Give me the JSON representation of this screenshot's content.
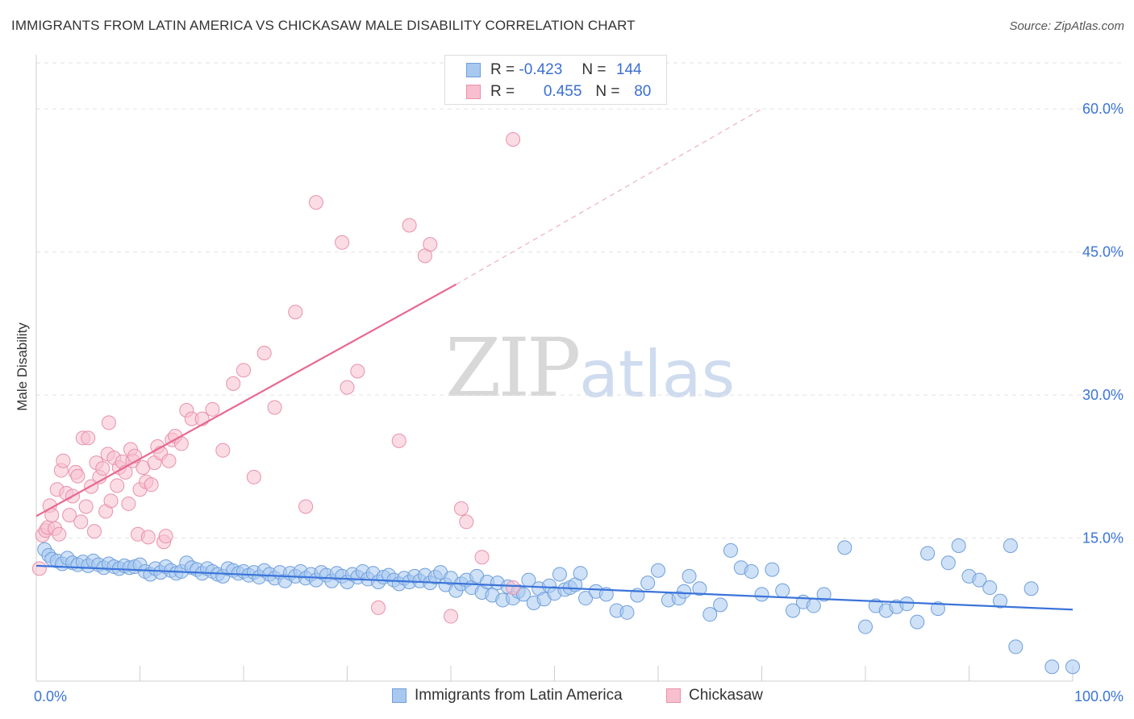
{
  "title": "IMMIGRANTS FROM LATIN AMERICA VS CHICKASAW MALE DISABILITY CORRELATION CHART",
  "source": "Source: ZipAtlas.com",
  "watermark": {
    "zip": "ZIP",
    "atlas": "atlas"
  },
  "legend_top": [
    {
      "r_label": "R =",
      "r_value": "-0.423",
      "n_label": "N =",
      "n_value": "144",
      "fill": "#a8c8f0",
      "stroke": "#6f9fdc"
    },
    {
      "r_label": "R =",
      "r_value": "0.455",
      "n_label": "N =",
      "n_value": "80",
      "fill": "#f8bfcf",
      "stroke": "#e891aa"
    }
  ],
  "legend_bottom": [
    {
      "label": "Immigrants from Latin America",
      "fill": "#a8c8f0",
      "stroke": "#6f9fdc"
    },
    {
      "label": "Chickasaw",
      "fill": "#f8bfcf",
      "stroke": "#e891aa"
    }
  ],
  "chart_data": {
    "type": "scatter",
    "title": "IMMIGRANTS FROM LATIN AMERICA VS CHICKASAW MALE DISABILITY CORRELATION CHART",
    "xlabel": "",
    "ylabel": "Male Disability",
    "xlim": [
      0,
      100
    ],
    "ylim": [
      0,
      65
    ],
    "x_tick_labels": [
      "0.0%",
      "100.0%"
    ],
    "y_ticks": [
      15,
      30,
      45,
      60
    ],
    "y_tick_labels": [
      "15.0%",
      "30.0%",
      "45.0%",
      "60.0%"
    ],
    "grid": "horizontal dashed",
    "legend_position": "top-center",
    "colors": {
      "blue": "#3b74d9",
      "pink": "#e8688f",
      "blue_fill": "#a8c8f0",
      "pink_fill": "#f8bfcf"
    },
    "series": [
      {
        "name": "Immigrants from Latin America",
        "color": "#3b74d9",
        "trend": {
          "x": [
            0,
            100
          ],
          "y": [
            12.1,
            7.5
          ]
        },
        "points": [
          [
            0.8,
            13.8
          ],
          [
            1.2,
            13.2
          ],
          [
            1.5,
            12.8
          ],
          [
            2,
            12.6
          ],
          [
            2.5,
            12.3
          ],
          [
            3,
            12.9
          ],
          [
            3.5,
            12.4
          ],
          [
            4,
            12.2
          ],
          [
            4.5,
            12.5
          ],
          [
            5,
            12.1
          ],
          [
            5.5,
            12.6
          ],
          [
            6,
            12.2
          ],
          [
            6.5,
            11.9
          ],
          [
            7,
            12.3
          ],
          [
            7.5,
            12.0
          ],
          [
            8,
            11.8
          ],
          [
            8.5,
            12.1
          ],
          [
            9,
            11.9
          ],
          [
            9.5,
            12.0
          ],
          [
            10,
            12.2
          ],
          [
            10.5,
            11.5
          ],
          [
            11,
            11.2
          ],
          [
            11.5,
            11.8
          ],
          [
            12,
            11.4
          ],
          [
            12.5,
            12.0
          ],
          [
            13,
            11.6
          ],
          [
            13.5,
            11.3
          ],
          [
            14,
            11.5
          ],
          [
            14.5,
            12.4
          ],
          [
            15,
            11.9
          ],
          [
            15.5,
            11.7
          ],
          [
            16,
            11.3
          ],
          [
            16.5,
            11.8
          ],
          [
            17,
            11.5
          ],
          [
            17.5,
            11.2
          ],
          [
            18,
            11.0
          ],
          [
            18.5,
            11.8
          ],
          [
            19,
            11.6
          ],
          [
            19.5,
            11.3
          ],
          [
            20,
            11.5
          ],
          [
            20.5,
            11.1
          ],
          [
            21,
            11.4
          ],
          [
            21.5,
            10.9
          ],
          [
            22,
            11.6
          ],
          [
            22.5,
            11.2
          ],
          [
            23,
            10.8
          ],
          [
            23.5,
            11.4
          ],
          [
            24,
            10.5
          ],
          [
            24.5,
            11.3
          ],
          [
            25,
            11.0
          ],
          [
            25.5,
            11.5
          ],
          [
            26,
            10.8
          ],
          [
            26.5,
            11.2
          ],
          [
            27,
            10.6
          ],
          [
            27.5,
            11.4
          ],
          [
            28,
            11.1
          ],
          [
            28.5,
            10.5
          ],
          [
            29,
            11.3
          ],
          [
            29.5,
            11.0
          ],
          [
            30,
            10.4
          ],
          [
            30.5,
            11.2
          ],
          [
            31,
            10.9
          ],
          [
            31.5,
            11.5
          ],
          [
            32,
            10.7
          ],
          [
            32.5,
            11.3
          ],
          [
            33,
            10.4
          ],
          [
            33.5,
            10.9
          ],
          [
            34,
            11.1
          ],
          [
            34.5,
            10.6
          ],
          [
            35,
            10.2
          ],
          [
            35.5,
            10.8
          ],
          [
            36,
            10.4
          ],
          [
            36.5,
            11.0
          ],
          [
            37,
            10.5
          ],
          [
            37.5,
            11.1
          ],
          [
            38,
            10.3
          ],
          [
            38.5,
            10.9
          ],
          [
            39,
            11.4
          ],
          [
            39.5,
            10.1
          ],
          [
            40,
            10.8
          ],
          [
            40.5,
            9.5
          ],
          [
            41,
            10.2
          ],
          [
            41.5,
            10.6
          ],
          [
            42,
            9.8
          ],
          [
            42.5,
            11.0
          ],
          [
            43,
            9.3
          ],
          [
            43.5,
            10.4
          ],
          [
            44,
            9.0
          ],
          [
            44.5,
            10.3
          ],
          [
            45,
            8.5
          ],
          [
            45.5,
            9.9
          ],
          [
            46,
            8.7
          ],
          [
            46.5,
            9.4
          ],
          [
            47,
            9.1
          ],
          [
            47.5,
            10.6
          ],
          [
            48,
            8.2
          ],
          [
            48.5,
            9.7
          ],
          [
            49,
            8.6
          ],
          [
            49.5,
            10.0
          ],
          [
            50,
            9.2
          ],
          [
            50.5,
            11.2
          ],
          [
            51,
            9.6
          ],
          [
            51.5,
            9.8
          ],
          [
            52,
            10.1
          ],
          [
            52.5,
            11.3
          ],
          [
            53,
            8.7
          ],
          [
            54,
            9.4
          ],
          [
            55,
            9.1
          ],
          [
            56,
            7.4
          ],
          [
            57,
            7.2
          ],
          [
            58,
            9.0
          ],
          [
            59,
            10.3
          ],
          [
            60,
            11.6
          ],
          [
            61,
            8.5
          ],
          [
            62,
            8.7
          ],
          [
            62.5,
            9.4
          ],
          [
            63,
            11.0
          ],
          [
            64,
            9.7
          ],
          [
            65,
            7.0
          ],
          [
            66,
            8.0
          ],
          [
            67,
            13.7
          ],
          [
            68,
            11.9
          ],
          [
            69,
            11.5
          ],
          [
            70,
            9.1
          ],
          [
            71,
            11.7
          ],
          [
            72,
            9.5
          ],
          [
            73,
            7.4
          ],
          [
            74,
            8.3
          ],
          [
            75,
            7.9
          ],
          [
            76,
            9.1
          ],
          [
            78,
            14.0
          ],
          [
            80,
            5.7
          ],
          [
            81,
            7.9
          ],
          [
            82,
            7.4
          ],
          [
            83,
            7.8
          ],
          [
            84,
            8.1
          ],
          [
            85,
            6.2
          ],
          [
            86,
            13.4
          ],
          [
            87,
            7.6
          ],
          [
            88,
            12.4
          ],
          [
            89,
            14.2
          ],
          [
            90,
            11.0
          ],
          [
            91,
            10.6
          ],
          [
            92,
            9.8
          ],
          [
            93,
            8.4
          ],
          [
            94,
            14.2
          ],
          [
            94.5,
            3.6
          ],
          [
            96,
            9.7
          ],
          [
            98,
            1.5
          ],
          [
            100,
            1.5
          ]
        ]
      },
      {
        "name": "Chickasaw",
        "color": "#e8688f",
        "trend": {
          "x": [
            0,
            40.5
          ],
          "y": [
            17.3,
            41.6
          ]
        },
        "trend_dashed": {
          "x": [
            40.5,
            70
          ],
          "y": [
            41.6,
            60
          ]
        },
        "points": [
          [
            0.3,
            11.8
          ],
          [
            0.6,
            15.3
          ],
          [
            0.9,
            15.8
          ],
          [
            1.1,
            16.1
          ],
          [
            1.3,
            18.4
          ],
          [
            1.5,
            17.4
          ],
          [
            1.8,
            16.0
          ],
          [
            2.0,
            20.1
          ],
          [
            2.2,
            15.4
          ],
          [
            2.4,
            22.1
          ],
          [
            2.6,
            23.1
          ],
          [
            2.9,
            19.7
          ],
          [
            3.2,
            17.4
          ],
          [
            3.5,
            19.4
          ],
          [
            3.8,
            21.9
          ],
          [
            4.0,
            21.5
          ],
          [
            4.3,
            16.7
          ],
          [
            4.5,
            25.5
          ],
          [
            4.8,
            18.3
          ],
          [
            5.0,
            25.5
          ],
          [
            5.3,
            20.4
          ],
          [
            5.6,
            15.7
          ],
          [
            5.8,
            22.9
          ],
          [
            6.1,
            21.4
          ],
          [
            6.4,
            22.3
          ],
          [
            6.7,
            17.8
          ],
          [
            6.9,
            23.8
          ],
          [
            7.0,
            27.1
          ],
          [
            7.2,
            18.9
          ],
          [
            7.5,
            23.4
          ],
          [
            7.8,
            20.5
          ],
          [
            8.0,
            22.4
          ],
          [
            8.3,
            23.0
          ],
          [
            8.6,
            21.9
          ],
          [
            8.9,
            18.6
          ],
          [
            9.1,
            24.3
          ],
          [
            9.3,
            23.1
          ],
          [
            9.5,
            23.6
          ],
          [
            9.8,
            15.4
          ],
          [
            10.0,
            20.1
          ],
          [
            10.3,
            22.4
          ],
          [
            10.6,
            20.9
          ],
          [
            10.8,
            15.1
          ],
          [
            11.1,
            20.6
          ],
          [
            11.4,
            22.9
          ],
          [
            11.7,
            24.6
          ],
          [
            12.0,
            23.9
          ],
          [
            12.3,
            14.6
          ],
          [
            12.5,
            15.2
          ],
          [
            12.8,
            23.1
          ],
          [
            13.1,
            25.3
          ],
          [
            13.4,
            25.7
          ],
          [
            14.0,
            24.9
          ],
          [
            14.5,
            28.4
          ],
          [
            15.0,
            27.5
          ],
          [
            16.0,
            27.5
          ],
          [
            17.0,
            28.5
          ],
          [
            18.0,
            24.2
          ],
          [
            19.0,
            31.2
          ],
          [
            20.0,
            32.6
          ],
          [
            21.0,
            21.4
          ],
          [
            22.0,
            34.4
          ],
          [
            23.0,
            28.7
          ],
          [
            25.0,
            38.7
          ],
          [
            26.0,
            18.3
          ],
          [
            27.0,
            50.2
          ],
          [
            29.5,
            46.0
          ],
          [
            30.0,
            30.8
          ],
          [
            31.0,
            32.5
          ],
          [
            33.0,
            7.7
          ],
          [
            35.0,
            25.2
          ],
          [
            36.0,
            47.8
          ],
          [
            37.5,
            44.6
          ],
          [
            38.0,
            45.8
          ],
          [
            40.0,
            6.8
          ],
          [
            41.0,
            18.1
          ],
          [
            43.0,
            13.0
          ],
          [
            46.0,
            9.8
          ],
          [
            46.0,
            56.8
          ],
          [
            41.5,
            16.7
          ]
        ]
      }
    ]
  }
}
